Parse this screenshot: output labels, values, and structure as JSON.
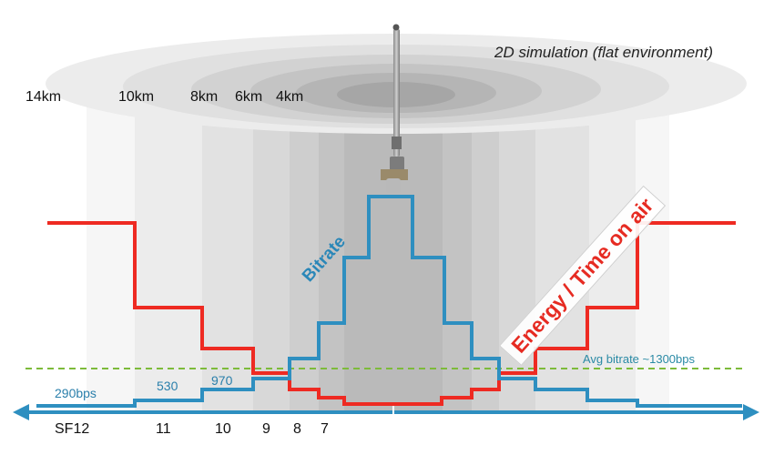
{
  "title": "2D simulation (flat environment)",
  "distances": [
    "14km",
    "10km",
    "8km",
    "6km",
    "4km"
  ],
  "spreading_factors": [
    "SF12",
    "11",
    "10",
    "9",
    "8",
    "7"
  ],
  "bitrate_labels": [
    "290bps",
    "530",
    "970"
  ],
  "avg_bitrate_label": "Avg bitrate ~1300bps",
  "bitrate_curve_label": "Bitrate",
  "energy_curve_label": "Energy / Time on air",
  "colors": {
    "bitrate": "#2e8fc0",
    "energy": "#ee2a22",
    "average": "#7dbb3a",
    "zone_shade": "#d8d8d8",
    "text": "#111111"
  }
}
